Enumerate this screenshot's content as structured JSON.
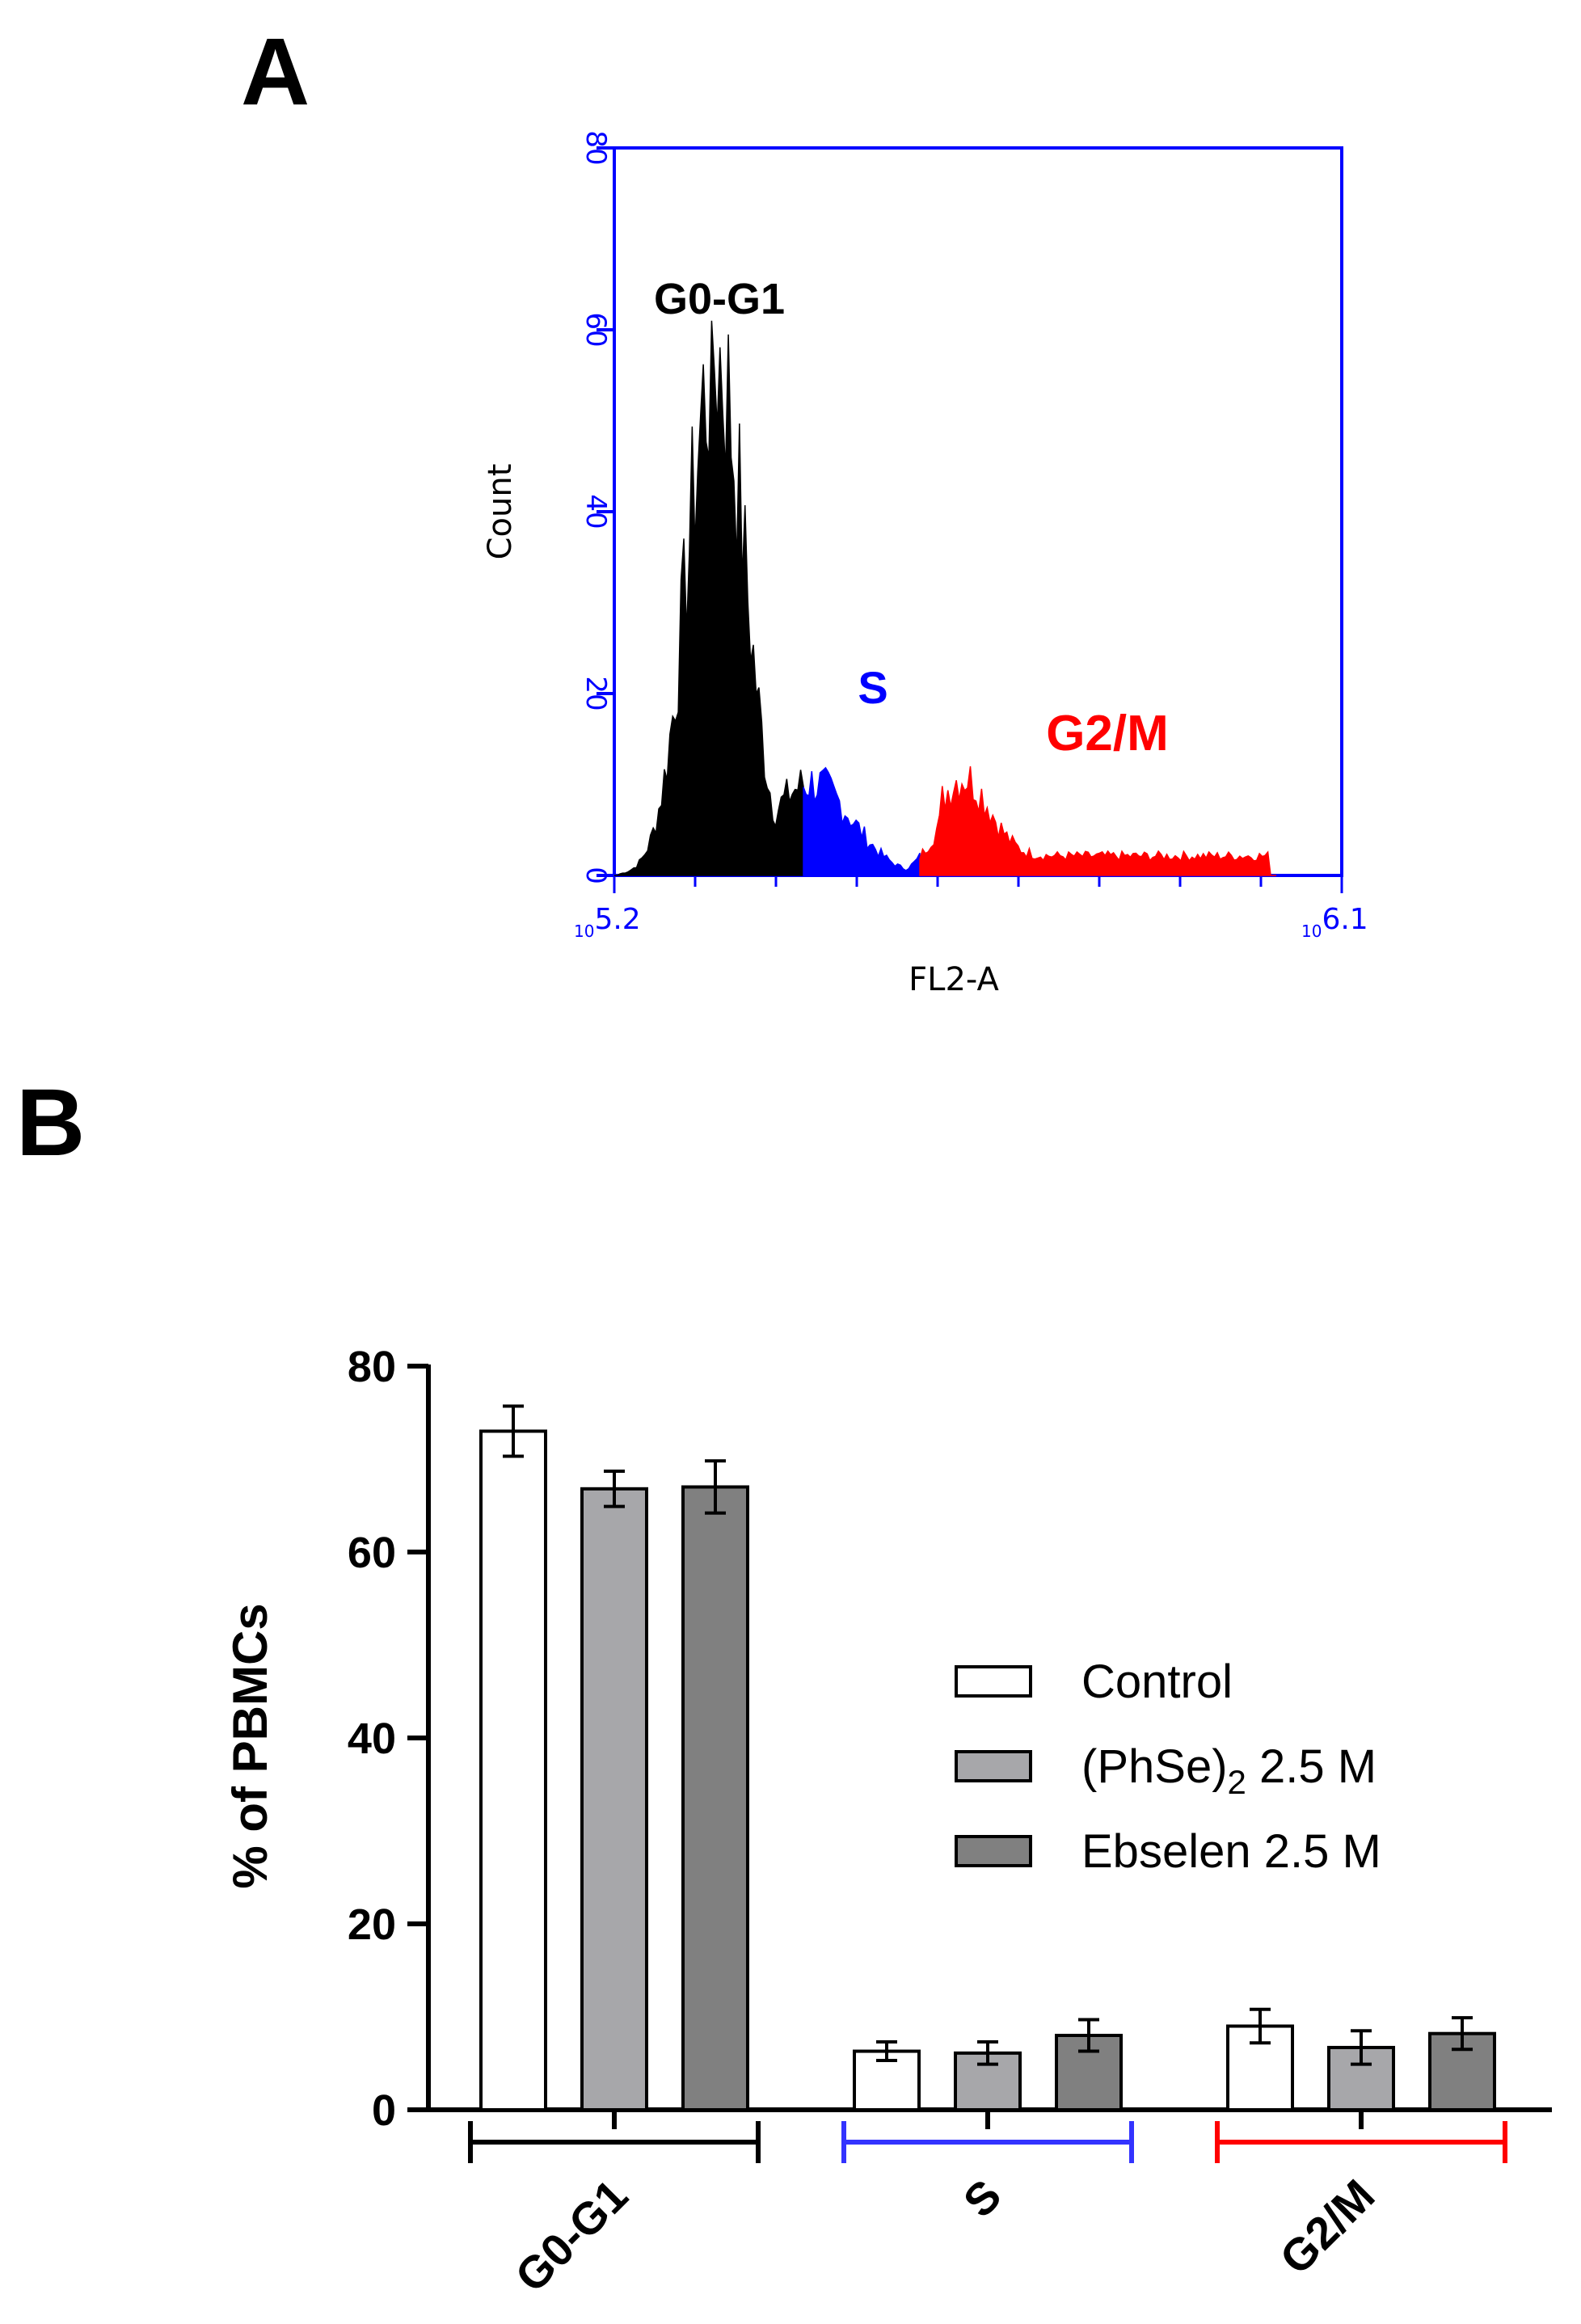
{
  "panels": {
    "a": "A",
    "b": "B"
  },
  "chart_data": [
    {
      "type": "area",
      "panel": "A",
      "xlabel": "FL2-A",
      "ylabel": "Count",
      "ylim": [
        0,
        80
      ],
      "yticks": [
        "0",
        "20",
        "40",
        "60",
        "80"
      ],
      "x_scale": "log",
      "x_tick_labels": [
        {
          "base": "10",
          "exp": "5.2"
        },
        {
          "base": "10",
          "exp": "6.1"
        }
      ],
      "axis_color": "#0000ff",
      "regions": [
        {
          "name": "G0-G1",
          "label": "G0-G1",
          "color": "#000000",
          "range_fraction": [
            0.0,
            0.26
          ],
          "peak": 59
        },
        {
          "name": "S",
          "label": "S",
          "color": "#0000ff",
          "range_fraction": [
            0.26,
            0.42
          ],
          "peak": 15
        },
        {
          "name": "G2/M",
          "label": "G2/M",
          "color": "#ff0000",
          "range_fraction": [
            0.42,
            0.91
          ],
          "peak": 10
        }
      ]
    },
    {
      "type": "bar",
      "panel": "B",
      "ylabel": "% of PBMCs",
      "ylim": [
        0,
        80
      ],
      "yticks": [
        "0",
        "20",
        "40",
        "60",
        "80"
      ],
      "categories": [
        "G0-G1",
        "S",
        "G2/M"
      ],
      "category_bracket_colors": [
        "#000000",
        "#3333ff",
        "#ff0000"
      ],
      "series": [
        {
          "name": "Control",
          "legend_main": "Control",
          "legend_sub": "",
          "legend_tail": "",
          "color": "#ffffff",
          "values": [
            73,
            6.3,
            9
          ],
          "errors": [
            2.7,
            1.0,
            1.8
          ]
        },
        {
          "name": "(PhSe)2 2.5 M",
          "legend_main": "(PhSe)",
          "legend_sub": "2",
          "legend_tail": " 2.5 M",
          "color": "#a7a7aa",
          "values": [
            66.8,
            6.1,
            6.7
          ],
          "errors": [
            1.9,
            1.2,
            1.8
          ]
        },
        {
          "name": "Ebselen 2.5 M",
          "legend_main": "Ebselen 2.5 M",
          "legend_sub": "",
          "legend_tail": "",
          "color": "#808080",
          "values": [
            67,
            8,
            8.2
          ],
          "errors": [
            2.8,
            1.7,
            1.7
          ]
        }
      ]
    }
  ]
}
